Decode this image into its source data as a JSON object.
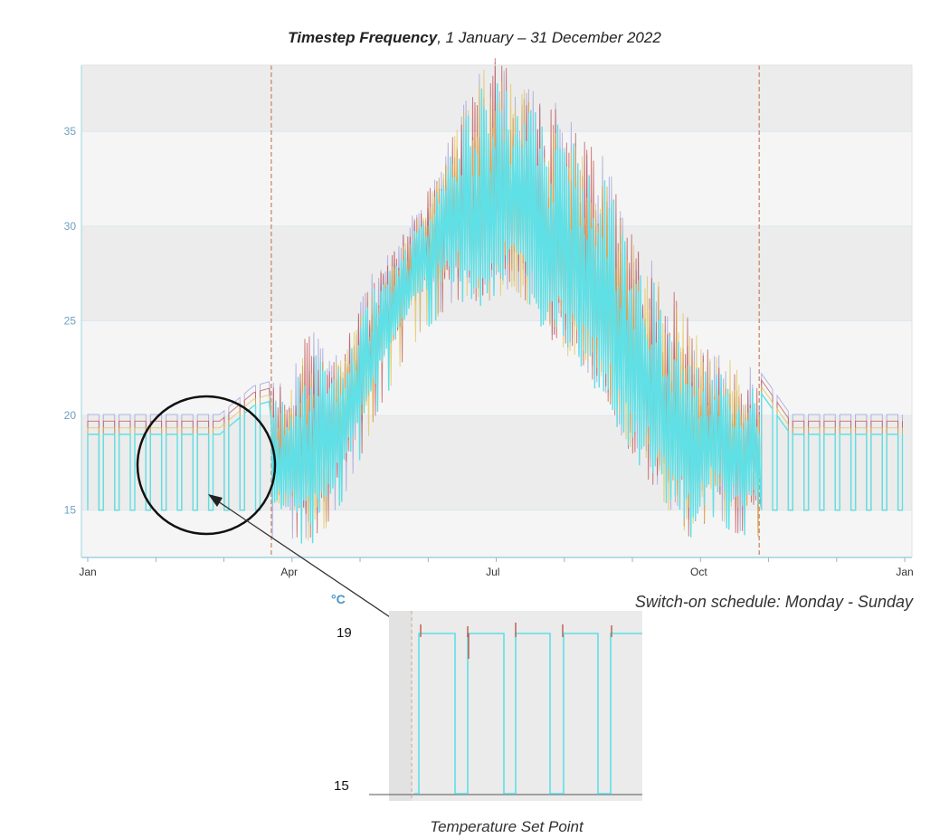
{
  "chart_data": {
    "type": "line",
    "title_bold": "Timestep Frequency",
    "title_rest": ", 1 January – 31 December 2022",
    "ylim": [
      12.5,
      38.5
    ],
    "y_ticks": [
      15,
      20,
      25,
      30,
      35
    ],
    "x_ticks": [
      {
        "label": "Jan",
        "day": 1
      },
      {
        "label": "Apr",
        "day": 91
      },
      {
        "label": "Jul",
        "day": 182
      },
      {
        "label": "Oct",
        "day": 274
      },
      {
        "label": "Jan",
        "day": 366
      }
    ],
    "heating_season_boundaries_day": [
      83,
      301
    ],
    "grid": true,
    "series_colors": [
      "#5fe0e6",
      "#e0c24a",
      "#c04a4a",
      "#9a9ad8"
    ],
    "series": [
      {
        "name": "",
        "x_day": [
          1,
          15,
          30,
          45,
          60,
          75,
          90,
          100,
          110,
          120,
          130,
          140,
          150,
          160,
          170,
          180,
          190,
          200,
          210,
          220,
          230,
          240,
          250,
          260,
          270,
          280,
          290,
          300,
          315,
          330,
          345,
          365
        ],
        "y_daily_peak": [
          19,
          19,
          19,
          19,
          19,
          20.5,
          21,
          24,
          22,
          24.5,
          27,
          28.5,
          30.5,
          33,
          36,
          38.5,
          37.5,
          36.5,
          35.5,
          34.5,
          33,
          30.5,
          27.5,
          26.5,
          24.5,
          23,
          22.5,
          21.5,
          19,
          19,
          19,
          19
        ],
        "y_daily_low": [
          15,
          15,
          15,
          15,
          15,
          15,
          15,
          14,
          16,
          18.5,
          22,
          24.5,
          26.5,
          27,
          27,
          26,
          27.5,
          26,
          24,
          23,
          21.5,
          19,
          17.5,
          15.5,
          14,
          16,
          15,
          15,
          15,
          15,
          15,
          15
        ]
      }
    ]
  },
  "annotation": {
    "schedule_text": "Switch-on schedule: Monday - Sunday",
    "inset_unit": "°C",
    "inset_y_high": "19",
    "inset_y_low": "15",
    "inset_caption": "Temperature Set Point"
  }
}
